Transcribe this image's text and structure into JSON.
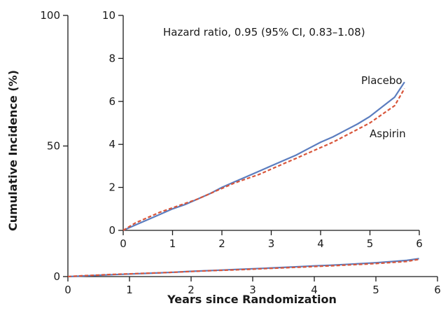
{
  "chart_data": {
    "type": "line",
    "xlabel": "Years since Randomization",
    "ylabel": "Cumulative Incidence (%)",
    "main": {
      "xlim": [
        0,
        6
      ],
      "ylim": [
        0,
        100
      ],
      "xticks": [
        "0",
        "1",
        "2",
        "3",
        "4",
        "5",
        "6"
      ],
      "yticks": [
        "0",
        "50",
        "100"
      ]
    },
    "inset": {
      "xlim": [
        0,
        6
      ],
      "ylim": [
        0,
        10
      ],
      "xticks": [
        "0",
        "1",
        "2",
        "3",
        "4",
        "5",
        "6"
      ],
      "yticks": [
        "0",
        "2",
        "4",
        "6",
        "8",
        "10"
      ],
      "annotation": "Hazard ratio, 0.95 (95% CI, 0.83–1.08)"
    },
    "series": [
      {
        "name": "Placebo",
        "color": "#5b7dbf",
        "dash": "solid",
        "x": [
          0,
          0.25,
          0.5,
          0.75,
          1.0,
          1.25,
          1.5,
          1.75,
          2.0,
          2.25,
          2.5,
          2.75,
          3.0,
          3.25,
          3.5,
          3.75,
          4.0,
          4.25,
          4.5,
          4.75,
          5.0,
          5.25,
          5.5,
          5.7
        ],
        "y": [
          0,
          0.25,
          0.5,
          0.75,
          1.0,
          1.2,
          1.45,
          1.7,
          2.0,
          2.25,
          2.5,
          2.75,
          3.0,
          3.25,
          3.5,
          3.8,
          4.1,
          4.35,
          4.65,
          4.95,
          5.3,
          5.75,
          6.2,
          6.9
        ]
      },
      {
        "name": "Aspirin",
        "color": "#d8553a",
        "dash": "dashed",
        "x": [
          0,
          0.25,
          0.5,
          0.75,
          1.0,
          1.25,
          1.5,
          1.75,
          2.0,
          2.25,
          2.5,
          2.75,
          3.0,
          3.25,
          3.5,
          3.75,
          4.0,
          4.25,
          4.5,
          4.75,
          5.0,
          5.25,
          5.5,
          5.7
        ],
        "y": [
          0,
          0.35,
          0.6,
          0.85,
          1.05,
          1.25,
          1.45,
          1.7,
          1.95,
          2.2,
          2.4,
          2.6,
          2.85,
          3.1,
          3.35,
          3.6,
          3.85,
          4.1,
          4.4,
          4.7,
          5.0,
          5.4,
          5.8,
          6.6
        ]
      }
    ]
  }
}
